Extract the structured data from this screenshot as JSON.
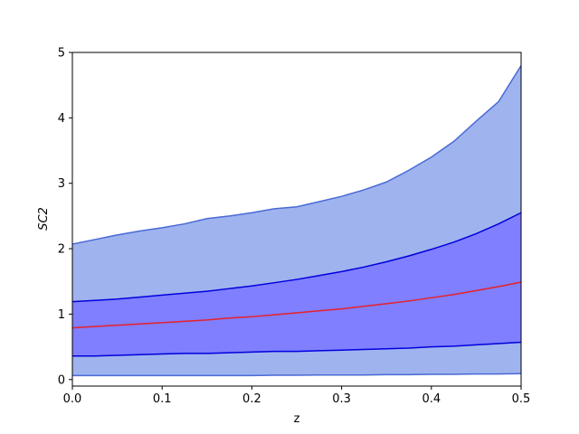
{
  "chart_data": {
    "type": "area",
    "xlabel": "z",
    "ylabel": "SC2",
    "xlim": [
      0,
      0.5
    ],
    "ylim": [
      -0.1,
      5
    ],
    "xticks": [
      "0.0",
      "0.1",
      "0.2",
      "0.3",
      "0.4",
      "0.5"
    ],
    "xtick_values": [
      0,
      0.1,
      0.2,
      0.3,
      0.4,
      0.5
    ],
    "yticks": [
      "0",
      "1",
      "2",
      "3",
      "4",
      "5"
    ],
    "ytick_values": [
      0,
      1,
      2,
      3,
      4,
      5
    ],
    "x": [
      0,
      0.025,
      0.05,
      0.075,
      0.1,
      0.125,
      0.15,
      0.175,
      0.2,
      0.225,
      0.25,
      0.275,
      0.3,
      0.325,
      0.35,
      0.375,
      0.4,
      0.425,
      0.45,
      0.475,
      0.5
    ],
    "outer_band": {
      "upper": [
        2.07,
        2.14,
        2.21,
        2.27,
        2.32,
        2.38,
        2.46,
        2.5,
        2.55,
        2.61,
        2.64,
        2.72,
        2.8,
        2.9,
        3.02,
        3.2,
        3.4,
        3.64,
        3.95,
        4.25,
        4.8
      ],
      "lower": [
        0.06,
        0.06,
        0.06,
        0.06,
        0.06,
        0.06,
        0.06,
        0.06,
        0.06,
        0.065,
        0.065,
        0.07,
        0.07,
        0.07,
        0.075,
        0.075,
        0.08,
        0.08,
        0.085,
        0.085,
        0.09
      ],
      "color": "#9fb3ee",
      "edge_color": "#4a6ad6"
    },
    "inner_band": {
      "upper": [
        1.19,
        1.21,
        1.23,
        1.26,
        1.29,
        1.32,
        1.35,
        1.39,
        1.43,
        1.48,
        1.53,
        1.59,
        1.65,
        1.72,
        1.8,
        1.89,
        1.99,
        2.1,
        2.23,
        2.38,
        2.55
      ],
      "lower": [
        0.36,
        0.36,
        0.37,
        0.38,
        0.39,
        0.4,
        0.4,
        0.41,
        0.42,
        0.43,
        0.43,
        0.44,
        0.45,
        0.46,
        0.47,
        0.48,
        0.5,
        0.51,
        0.53,
        0.55,
        0.57
      ],
      "color": "#7f7fff",
      "edge_color": "#0000dd"
    },
    "median": {
      "values": [
        0.79,
        0.81,
        0.83,
        0.85,
        0.87,
        0.89,
        0.91,
        0.94,
        0.96,
        0.99,
        1.02,
        1.05,
        1.08,
        1.12,
        1.16,
        1.2,
        1.25,
        1.3,
        1.36,
        1.42,
        1.49
      ],
      "color": "#e8202a"
    }
  }
}
